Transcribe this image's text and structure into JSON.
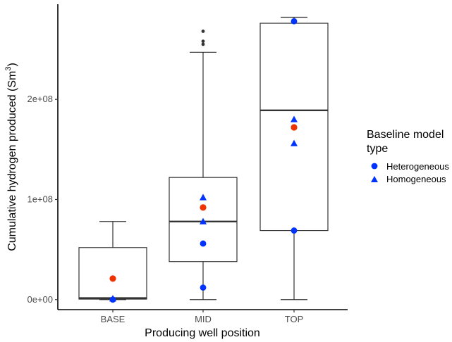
{
  "chart_data": {
    "type": "boxplot",
    "xlabel": "Producing well position",
    "ylabel_main": "Cumulative hydrogen produced (Sm",
    "ylabel_sup": "3",
    "ylabel_close": ")",
    "categories": [
      "BASE",
      "MID",
      "TOP"
    ],
    "y_ticks": [
      0,
      100000000,
      200000000
    ],
    "y_tick_labels": [
      "0e+00",
      "1e+08",
      "2e+08"
    ],
    "ylim": [
      -10000000,
      295000000
    ],
    "grid": false,
    "boxes": [
      {
        "category": "BASE",
        "min": 0,
        "q1": 500000,
        "median": 1500000,
        "q3": 52000000,
        "max": 78000000,
        "outliers": []
      },
      {
        "category": "MID",
        "min": 0,
        "q1": 38000000,
        "median": 78000000,
        "q3": 122000000,
        "max": 247000000,
        "outliers": [
          255000000,
          258000000,
          268000000
        ]
      },
      {
        "category": "TOP",
        "min": 0,
        "q1": 69000000,
        "median": 189000000,
        "q3": 276000000,
        "max": 282000000,
        "outliers": []
      }
    ],
    "mean_color": "#ee3300",
    "means": [
      {
        "category": "BASE",
        "value": 21000000
      },
      {
        "category": "MID",
        "value": 92000000
      },
      {
        "category": "TOP",
        "value": 172000000
      }
    ],
    "legend": {
      "title_line1": "Baseline model",
      "title_line2": "type",
      "position": "right",
      "items": [
        {
          "label": "Heterogeneous",
          "shape": "circle",
          "color": "#0033ff"
        },
        {
          "label": "Homogeneous",
          "shape": "triangle",
          "color": "#0033ff"
        }
      ]
    },
    "series": [
      {
        "name": "Heterogeneous",
        "shape": "circle",
        "color": "#0033ff",
        "points": [
          {
            "category": "BASE",
            "value": 0
          },
          {
            "category": "MID",
            "value": 56000000
          },
          {
            "category": "MID",
            "value": 12000000
          },
          {
            "category": "TOP",
            "value": 278000000
          },
          {
            "category": "TOP",
            "value": 69000000
          }
        ]
      },
      {
        "name": "Homogeneous",
        "shape": "triangle",
        "color": "#0033ff",
        "points": [
          {
            "category": "BASE",
            "value": 1000000
          },
          {
            "category": "MID",
            "value": 102000000
          },
          {
            "category": "MID",
            "value": 78000000
          },
          {
            "category": "TOP",
            "value": 180000000
          },
          {
            "category": "TOP",
            "value": 156000000
          }
        ]
      }
    ]
  }
}
